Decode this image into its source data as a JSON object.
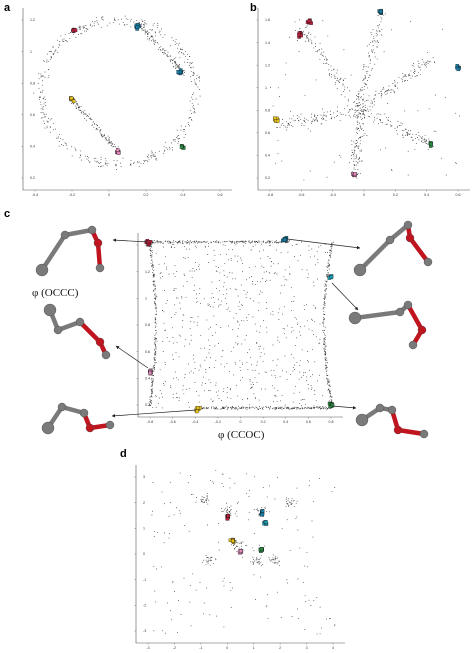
{
  "figure": {
    "panels": [
      {
        "id": "a",
        "label": "a"
      },
      {
        "id": "b",
        "label": "b"
      },
      {
        "id": "c",
        "label": "c",
        "xlabel": "φ (CCOC)",
        "ylabel": "φ (OCCC)"
      },
      {
        "id": "d",
        "label": "d"
      }
    ]
  },
  "colors": {
    "red": "#b5203a",
    "blue": "#1a7fa8",
    "teal": "#1aa0b5",
    "yellow": "#e8c21a",
    "pink": "#e48bbd",
    "green": "#2e8b45",
    "points": "#333333",
    "molecule_grey": "#7a7a7a",
    "molecule_red": "#c0141e"
  },
  "chart_data": [
    {
      "panel": "a",
      "type": "scatter",
      "title": "",
      "xlabel": "",
      "ylabel": "",
      "xticks": [
        "-0.4",
        "-0.2",
        "0",
        "0.2",
        "0.4",
        "0.6"
      ],
      "yticks": [
        "0.2",
        "0.4",
        "0.6",
        "0.8",
        "1",
        "1.2"
      ],
      "xlim": [
        -0.5,
        0.7
      ],
      "ylim": [
        0.1,
        1.3
      ],
      "shape": "ring",
      "cluster_colors": [
        "red",
        "blue",
        "blue",
        "yellow",
        "pink",
        "green"
      ]
    },
    {
      "panel": "b",
      "type": "scatter",
      "title": "",
      "xlabel": "",
      "ylabel": "",
      "xticks": [
        "-0.8",
        "-0.6",
        "-0.4",
        "0",
        "0.2",
        "0.4",
        "0.6"
      ],
      "yticks": [
        "0.2",
        "0.4",
        "0.6",
        "0.8",
        "1",
        "1.2",
        "1.4",
        "1.6"
      ],
      "xlim": [
        -0.9,
        0.7
      ],
      "ylim": [
        0.1,
        1.7
      ],
      "shape": "cross",
      "cluster_colors": [
        "red",
        "blue",
        "blue",
        "yellow",
        "pink",
        "green"
      ]
    },
    {
      "panel": "c",
      "type": "scatter",
      "title": "",
      "xlabel": "φ (CCOC)",
      "ylabel": "φ (OCCC)",
      "xticks": [
        "-0.8",
        "-0.6",
        "-0.4",
        "-0.2",
        "0",
        "0.2",
        "0.4",
        "0.6",
        "0.8"
      ],
      "yticks": [
        "0.2",
        "0.4",
        "0.6",
        "0.8",
        "1",
        "1.2",
        "1.4"
      ],
      "xlim": [
        -0.9,
        0.9
      ],
      "ylim": [
        0.1,
        1.5
      ],
      "shape": "square",
      "cluster_colors": [
        "red",
        "blue",
        "teal",
        "yellow",
        "pink",
        "green"
      ]
    },
    {
      "panel": "d",
      "type": "scatter",
      "title": "",
      "xlabel": "",
      "ylabel": "",
      "xticks": [
        "-3",
        "-2",
        "-1",
        "0",
        "1",
        "2",
        "3",
        "4"
      ],
      "yticks": [
        "-3",
        "-2",
        "-1",
        "0",
        "1",
        "2",
        "3"
      ],
      "xlim": [
        -3.5,
        4.5
      ],
      "ylim": [
        -3.5,
        3.5
      ],
      "shape": "sparse",
      "cluster_colors": [
        "red",
        "blue",
        "yellow",
        "pink",
        "green"
      ]
    }
  ]
}
